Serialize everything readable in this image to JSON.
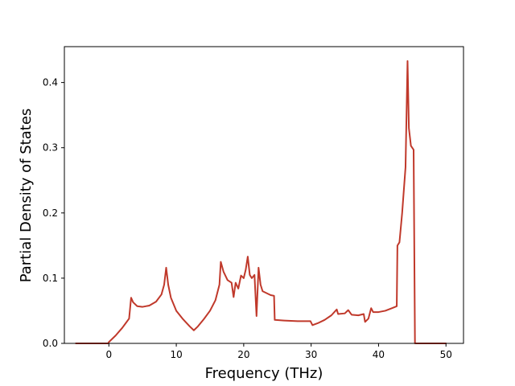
{
  "chart_data": {
    "type": "line",
    "title": "",
    "xlabel": "Frequency (THz)",
    "ylabel": "Partial Density of States",
    "xlim": [
      -6.6,
      52.6
    ],
    "ylim": [
      0.0,
      0.455
    ],
    "xticks": [
      0,
      10,
      20,
      30,
      40,
      50
    ],
    "yticks": [
      0.0,
      0.1,
      0.2,
      0.3,
      0.4
    ],
    "xtick_labels": [
      "0",
      "10",
      "20",
      "30",
      "40",
      "50"
    ],
    "ytick_labels": [
      "0.0",
      "0.1",
      "0.2",
      "0.3",
      "0.4"
    ],
    "grid": false,
    "legend": "none",
    "colors": {
      "line": "#c0392b",
      "axes": "#000000",
      "background": "#ffffff"
    },
    "series": [
      {
        "x": [
          -4.9,
          -0.1,
          0.0,
          1.0,
          2.0,
          2.5,
          3.0,
          3.3,
          3.6,
          4.2,
          5.0,
          6.0,
          7.0,
          7.8,
          8.2,
          8.5,
          8.8,
          9.2,
          10.0,
          11.0,
          12.0,
          12.6,
          13.2,
          14.0,
          15.0,
          15.8,
          16.4,
          16.6,
          17.0,
          17.6,
          18.2,
          18.5,
          18.8,
          19.2,
          19.6,
          20.0,
          20.3,
          20.6,
          20.9,
          21.2,
          21.6,
          21.9,
          22.2,
          22.5,
          22.8,
          23.2,
          24.0,
          24.5,
          24.6,
          26.0,
          28.0,
          29.9,
          30.2,
          31.0,
          32.0,
          33.0,
          33.8,
          34.0,
          35.0,
          35.5,
          36.0,
          37.0,
          37.8,
          38.0,
          38.5,
          38.9,
          39.2,
          40.0,
          41.0,
          42.0,
          42.7,
          42.8,
          43.1,
          43.5,
          44.0,
          44.3,
          44.5,
          44.8,
          45.2,
          45.4,
          45.5,
          47.0,
          50.0
        ],
        "y": [
          0.0,
          0.0,
          0.002,
          0.012,
          0.024,
          0.031,
          0.038,
          0.07,
          0.063,
          0.057,
          0.056,
          0.058,
          0.064,
          0.075,
          0.09,
          0.116,
          0.09,
          0.07,
          0.05,
          0.037,
          0.026,
          0.02,
          0.026,
          0.036,
          0.05,
          0.066,
          0.09,
          0.125,
          0.11,
          0.097,
          0.093,
          0.071,
          0.093,
          0.084,
          0.104,
          0.1,
          0.113,
          0.133,
          0.105,
          0.1,
          0.105,
          0.042,
          0.116,
          0.09,
          0.08,
          0.078,
          0.074,
          0.073,
          0.036,
          0.035,
          0.034,
          0.034,
          0.028,
          0.031,
          0.036,
          0.043,
          0.052,
          0.045,
          0.046,
          0.051,
          0.044,
          0.043,
          0.045,
          0.033,
          0.038,
          0.054,
          0.048,
          0.048,
          0.05,
          0.054,
          0.057,
          0.15,
          0.155,
          0.2,
          0.27,
          0.433,
          0.33,
          0.303,
          0.297,
          0.0,
          0.0,
          0.0,
          0.0
        ]
      }
    ]
  }
}
